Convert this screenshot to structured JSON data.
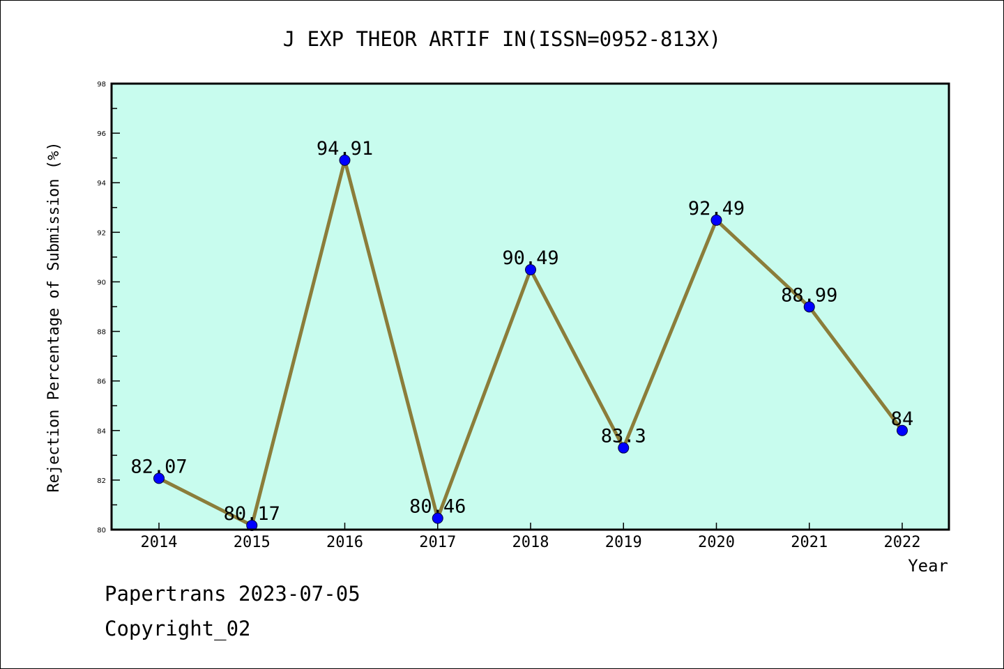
{
  "chart_data": {
    "type": "line",
    "title": "J EXP THEOR ARTIF IN(ISSN=0952-813X)",
    "xlabel": "Year",
    "ylabel": "Rejection Percentage of Submission (%)",
    "categories": [
      "2014",
      "2015",
      "2016",
      "2017",
      "2018",
      "2019",
      "2020",
      "2021",
      "2022"
    ],
    "values": [
      82.07,
      80.17,
      94.91,
      80.46,
      90.49,
      83.3,
      92.49,
      88.99,
      84
    ],
    "labels": [
      "82.07",
      "80.17",
      "94.91",
      "80.46",
      "90.49",
      "83.3",
      "92.49",
      "88.99",
      "84"
    ],
    "ylim": [
      80,
      98
    ],
    "yticks": [
      "80",
      "82",
      "84",
      "86",
      "88",
      "90",
      "92",
      "94",
      "96",
      "98"
    ],
    "grid": false,
    "colors": {
      "background": "#c8fcee",
      "line": "#8b7d3a",
      "marker": "#0000ff"
    }
  },
  "footer": {
    "line1": "Papertrans 2023-07-05",
    "line2": "Copyright_02"
  }
}
